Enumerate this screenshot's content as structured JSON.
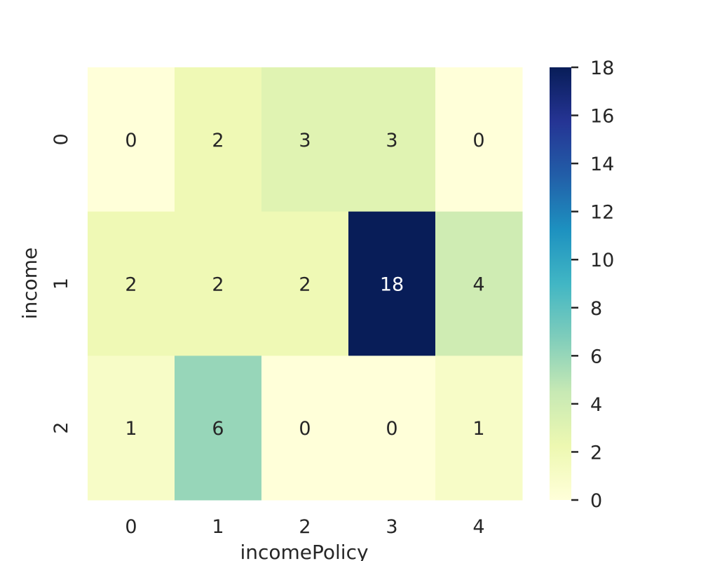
{
  "chart_data": {
    "type": "heatmap",
    "title": "",
    "xlabel": "incomePolicy",
    "ylabel": "income",
    "x_categories": [
      "0",
      "1",
      "2",
      "3",
      "4"
    ],
    "y_categories": [
      "0",
      "1",
      "2"
    ],
    "values": [
      [
        0,
        2,
        3,
        3,
        0
      ],
      [
        2,
        2,
        2,
        18,
        4
      ],
      [
        1,
        6,
        0,
        0,
        1
      ]
    ],
    "colorbar": {
      "min": 0,
      "max": 18,
      "ticks": [
        "0",
        "2",
        "4",
        "6",
        "8",
        "10",
        "12",
        "14",
        "16",
        "18"
      ],
      "colormap": "YlGnBu"
    },
    "annotations": true,
    "grid": false
  }
}
